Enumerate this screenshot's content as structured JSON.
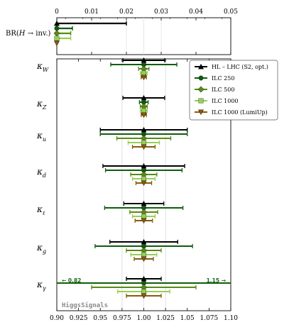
{
  "chart_data": [
    {
      "type": "errorbar",
      "panel": "top",
      "ylabel_parts": {
        "base": "BR(",
        "H": "H",
        "arrow": " → ",
        "tail": "inv.)"
      },
      "xlim": [
        0,
        0.05
      ],
      "xticks": [
        "0",
        "0.01",
        "0.02",
        "0.03",
        "0.04",
        "0.05"
      ],
      "series": [
        {
          "name": "HL – LHC (S2, opt.)",
          "upper": 0.02
        },
        {
          "name": "ILC 250",
          "upper": 0.0045
        },
        {
          "name": "ILC 500",
          "upper": 0.004
        },
        {
          "name": "ILC 1000",
          "upper": 0.004
        },
        {
          "name": "ILC 1000 (LumiUp)",
          "upper": 0.0
        }
      ]
    },
    {
      "type": "errorbar",
      "panel": "bottom",
      "xlim": [
        0.9,
        1.1
      ],
      "xticks": [
        "0.90",
        "0.925",
        "0.95",
        "0.975",
        "1.00",
        "1.025",
        "1.05",
        "1.075",
        "1.10"
      ],
      "rows": [
        {
          "kappa": "κ",
          "sub": "W"
        },
        {
          "kappa": "κ",
          "sub": "Z"
        },
        {
          "kappa": "κ",
          "sub": "u"
        },
        {
          "kappa": "κ",
          "sub": "d"
        },
        {
          "kappa": "κ",
          "sub": "ℓ"
        },
        {
          "kappa": "κ",
          "sub": "g"
        },
        {
          "kappa": "κ",
          "sub": "γ"
        }
      ],
      "central": 1.0,
      "series": [
        {
          "name": "HL – LHC (S2, opt.)",
          "color": "#000000",
          "marker": "triangle-up",
          "errors": [
            0.024,
            0.024,
            0.05,
            0.047,
            0.023,
            0.039,
            0.02
          ]
        },
        {
          "name": "ILC 250",
          "color": "#0d5e0d",
          "marker": "circle",
          "errors": [
            0.038,
            0.005,
            0.05,
            0.044,
            0.045,
            0.056,
            0.16
          ]
        },
        {
          "name": "ILC 500",
          "color": "#5a8a14",
          "marker": "diamond",
          "errors": [
            0.006,
            0.004,
            0.031,
            0.015,
            0.016,
            0.02,
            0.06
          ]
        },
        {
          "name": "ILC 1000",
          "color": "#96cf55",
          "marker": "square",
          "errors": [
            0.004,
            0.004,
            0.018,
            0.013,
            0.013,
            0.015,
            0.03
          ]
        },
        {
          "name": "ILC 1000 (LumiUp)",
          "color": "#8a5a0a",
          "marker": "triangle-down",
          "errors": [
            0.003,
            0.003,
            0.013,
            0.009,
            0.01,
            0.011,
            0.02
          ]
        }
      ],
      "clipped_labels": {
        "left": "← 0.82",
        "right": "1.15 →"
      },
      "watermark": "HiggsSignals"
    }
  ]
}
